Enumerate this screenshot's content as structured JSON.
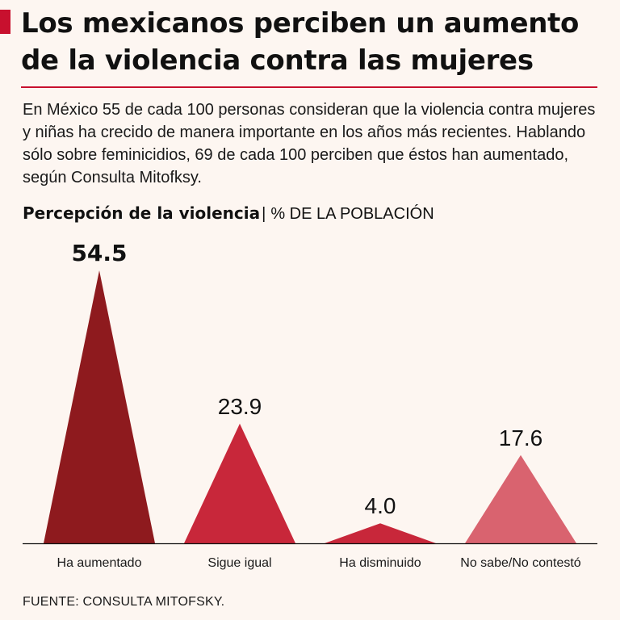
{
  "header": {
    "title": "Los mexicanos perciben un aumento de la violencia contra las mujeres",
    "accent_color": "#c8102e"
  },
  "lede": "En México 55 de cada 100 personas consideran que la violencia contra mujeres y niñas ha crecido de manera importante en los años más recientes. Hablando sólo sobre feminicidios, 69 de cada 100 perciben que éstos han aumentado, según Consulta Mitofksy.",
  "chart_heading": {
    "title": "Percepción de la violencia",
    "separator": "|",
    "unit": "% DE LA POBLACIÓN"
  },
  "chart_data": {
    "type": "bar",
    "title": "Percepción de la violencia",
    "ylabel": "% DE LA POBLACIÓN",
    "xlabel": "",
    "ylim": [
      0,
      54.5
    ],
    "grid": false,
    "categories": [
      "Ha aumentado",
      "Sigue igual",
      "Ha disminuido",
      "No sabe/No contestó"
    ],
    "values": [
      54.5,
      23.9,
      4.0,
      17.6
    ],
    "value_labels": [
      "54.5",
      "23.9",
      "4.0",
      "17.6"
    ],
    "colors": [
      "#8e1a1e",
      "#c8273a",
      "#c8273a",
      "#d9636f"
    ]
  },
  "footer": {
    "source": "FUENTE: CONSULTA MITOFSKY."
  }
}
